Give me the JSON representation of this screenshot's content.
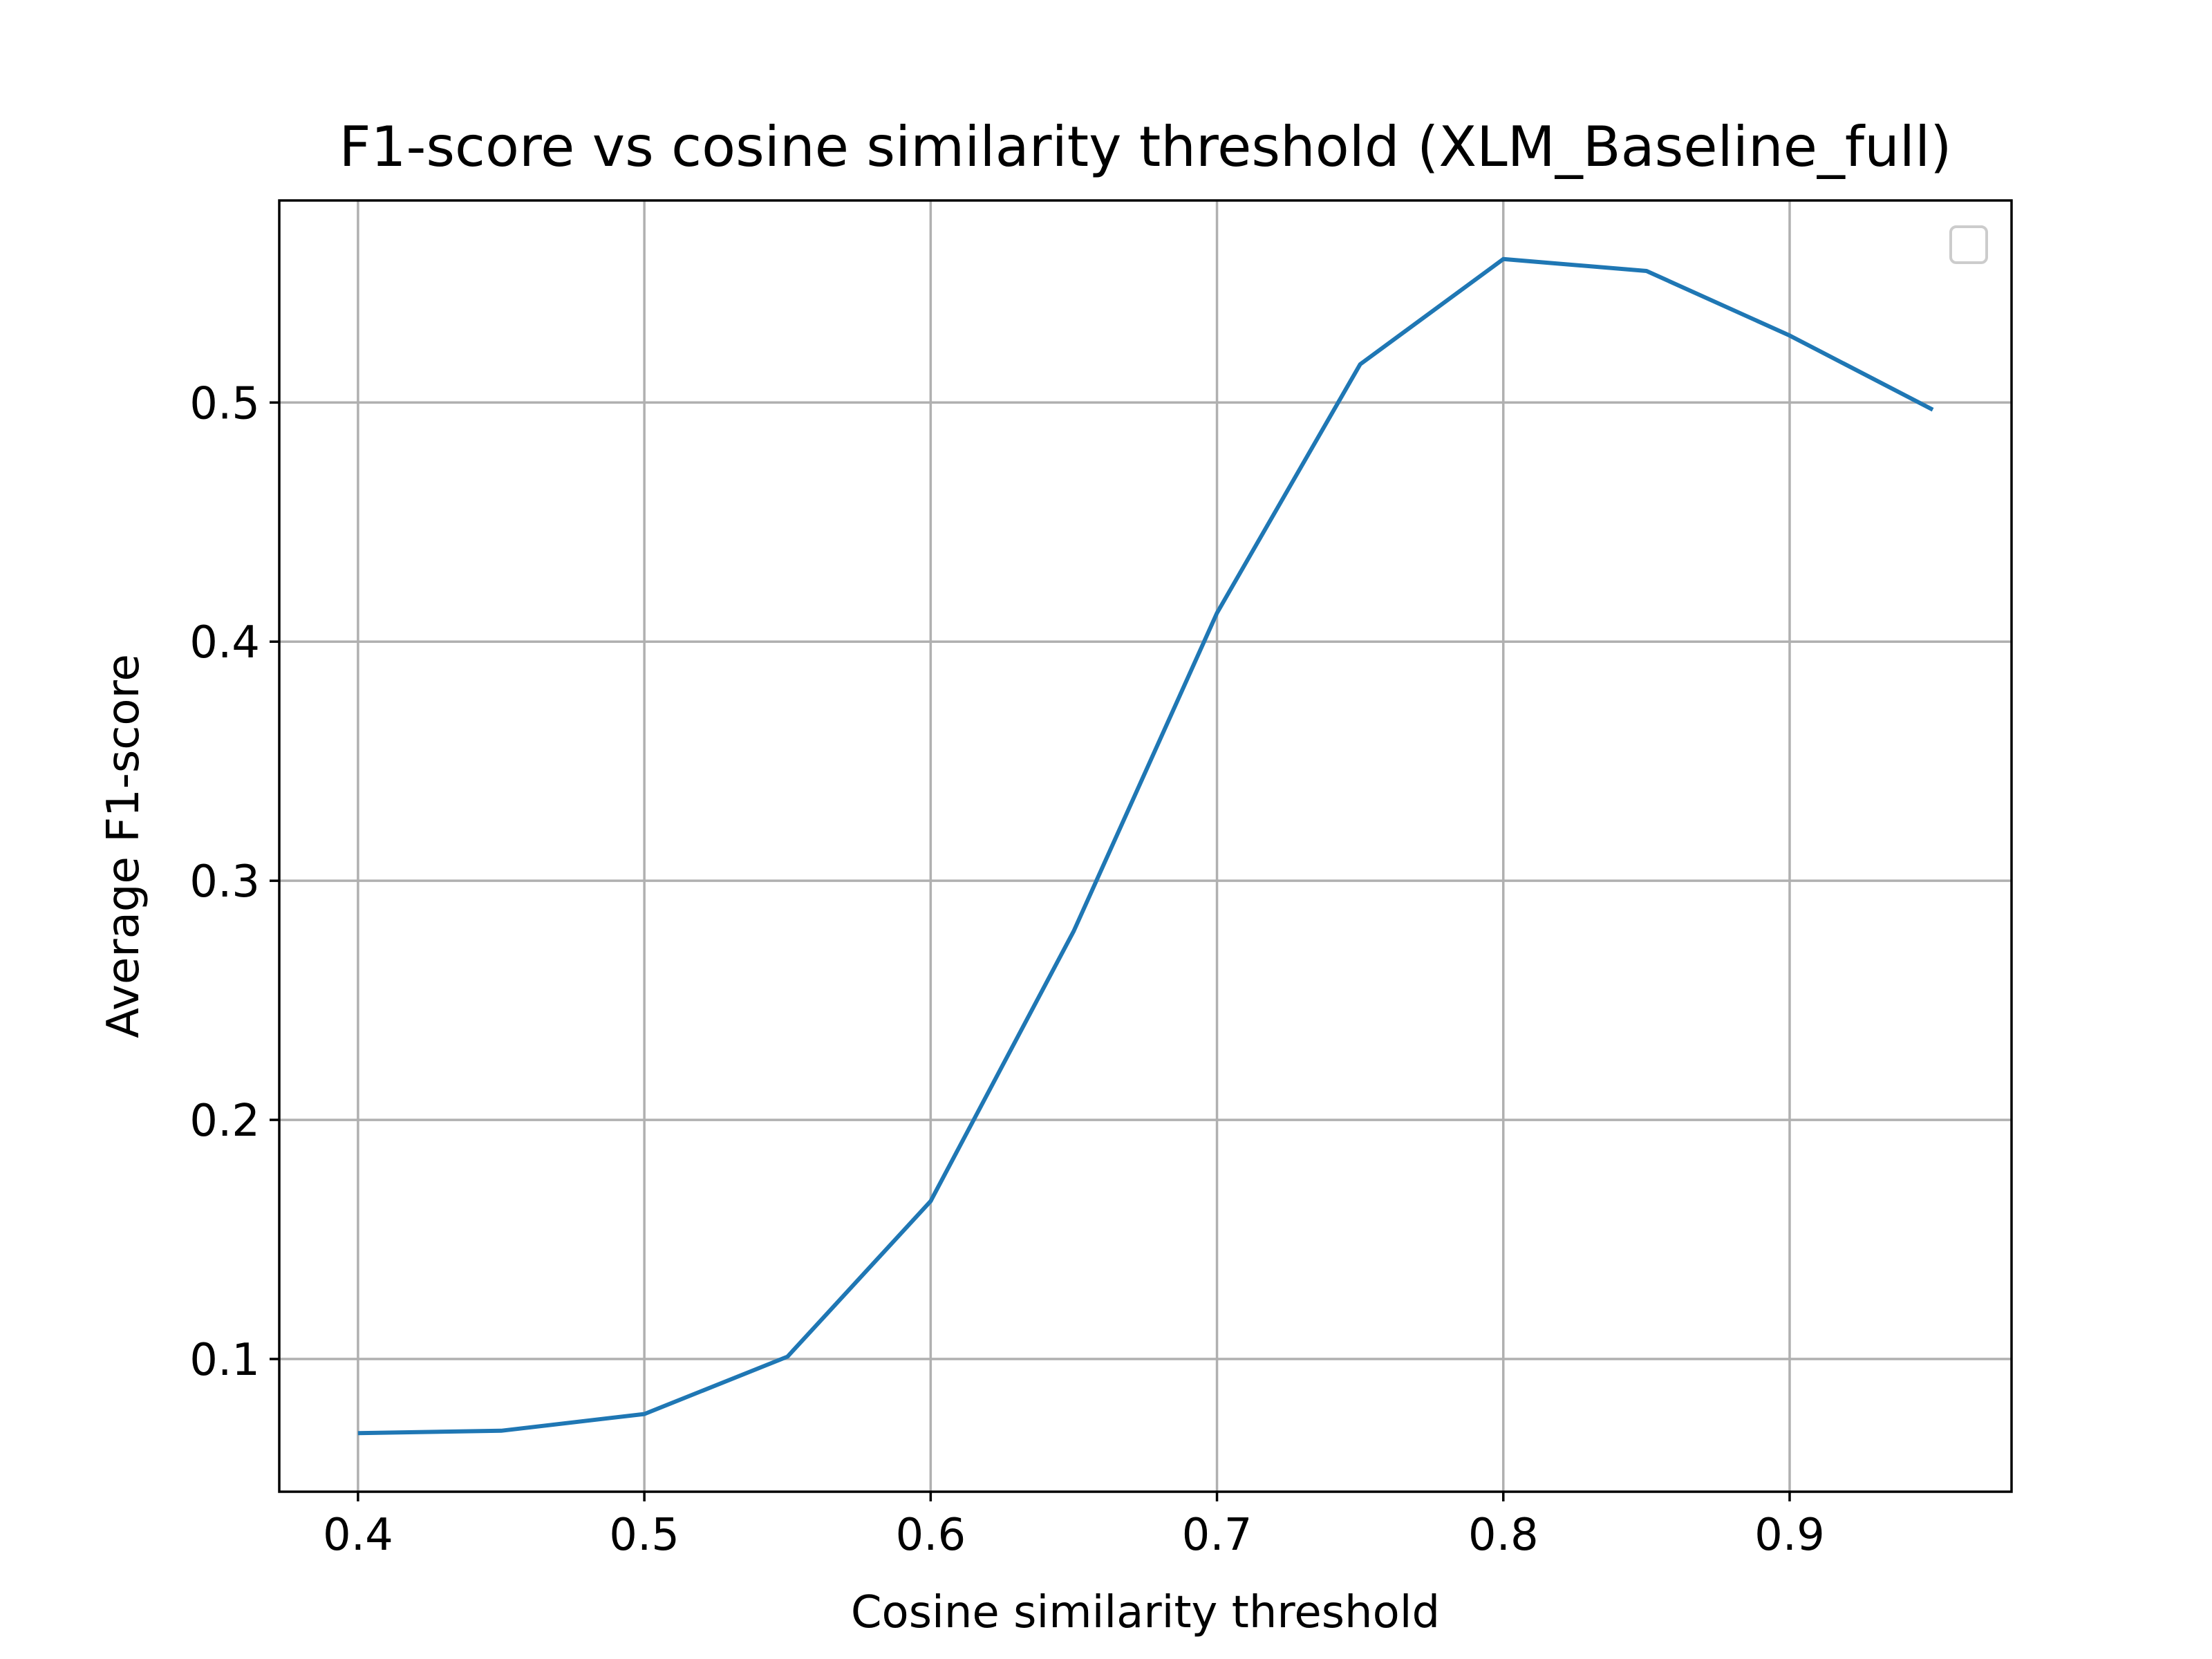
{
  "chart_data": {
    "type": "line",
    "title": "F1-score vs cosine similarity threshold (XLM_Baseline_full)",
    "xlabel": "Cosine similarity threshold",
    "ylabel": "Average F1-score",
    "xlim": [
      0.3725,
      0.9775
    ],
    "ylim": [
      0.0445,
      0.5845
    ],
    "xticks": [
      0.4,
      0.5,
      0.6,
      0.7,
      0.8,
      0.9
    ],
    "xtick_labels": [
      "0.4",
      "0.5",
      "0.6",
      "0.7",
      "0.8",
      "0.9"
    ],
    "yticks": [
      0.1,
      0.2,
      0.3,
      0.4,
      0.5
    ],
    "ytick_labels": [
      "0.1",
      "0.2",
      "0.3",
      "0.4",
      "0.5"
    ],
    "grid": true,
    "legend": {
      "placement": "upper right",
      "entries": []
    },
    "series": [
      {
        "color": "#1f77b4",
        "x": [
          0.4,
          0.45,
          0.5,
          0.55,
          0.6,
          0.65,
          0.7,
          0.75,
          0.8,
          0.85,
          0.9,
          0.95
        ],
        "y": [
          0.069,
          0.07,
          0.077,
          0.101,
          0.166,
          0.279,
          0.412,
          0.516,
          0.56,
          0.555,
          0.528,
          0.497
        ]
      }
    ]
  }
}
